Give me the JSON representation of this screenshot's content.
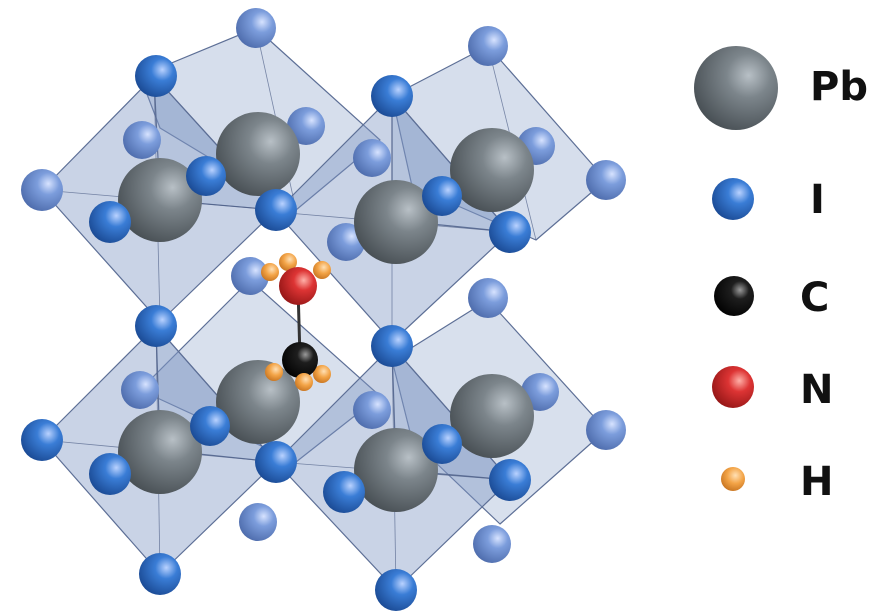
{
  "legend": {
    "items": [
      {
        "label": "Pb",
        "element": "Pb",
        "color": "#6b7378"
      },
      {
        "label": "I",
        "element": "I",
        "color": "#2f6fc4"
      },
      {
        "label": "C",
        "element": "C",
        "color": "#111111"
      },
      {
        "label": "N",
        "element": "N",
        "color": "#d93030"
      },
      {
        "label": "H",
        "element": "H",
        "color": "#f2a24a"
      }
    ]
  },
  "colors": {
    "octahedron_fill": "#7f97c4",
    "octahedron_edge": "#5d6f96",
    "iodine": "#2f6fc4",
    "iodine_light": "#6f93d8",
    "lead": "#6b7378",
    "carbon": "#111111",
    "nitrogen": "#d93030",
    "hydrogen": "#f2a24a",
    "bond": "#333333"
  }
}
